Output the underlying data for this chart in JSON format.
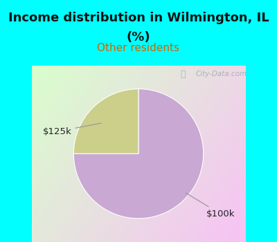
{
  "title_line1": "Income distribution in Wilmington, IL",
  "title_line2": "(%)",
  "subtitle": "Other residents",
  "slices": [
    {
      "label": "$100k",
      "value": 75,
      "color": "#C9A8D4"
    },
    {
      "label": "$125k",
      "value": 25,
      "color": "#CCCF8A"
    }
  ],
  "title_fontsize": 13,
  "subtitle_fontsize": 11,
  "subtitle_color": "#CC6600",
  "title_color": "#111111",
  "bg_color_cyan": "#00FFFF",
  "bg_color_chart_tl": "#C8ECC0",
  "bg_color_chart_br": "#F0F8FF",
  "watermark": "City-Data.com",
  "annotation_color": "#222222",
  "arrow_color": "#999999"
}
